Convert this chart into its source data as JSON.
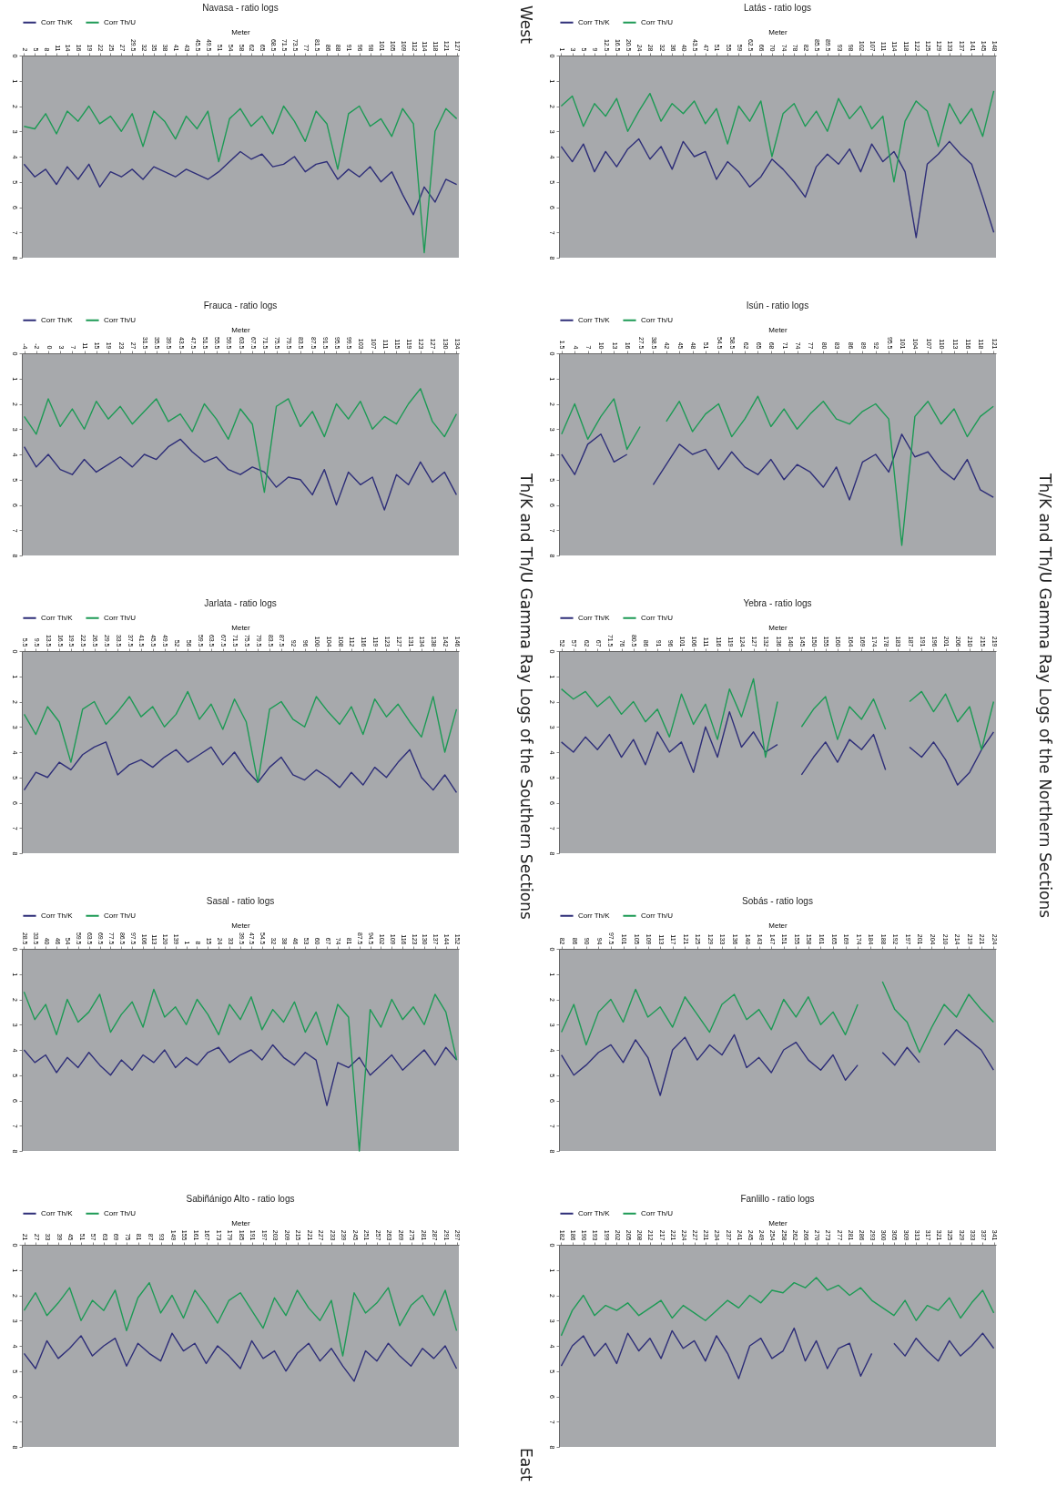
{
  "chart_data": [
    {
      "type": "line",
      "title": "Navasa - ratio logs",
      "xlabel": "Meter",
      "legend": "top",
      "grid": false,
      "ylim": [
        8,
        0
      ],
      "yticks": [
        0,
        1,
        2,
        3,
        4,
        5,
        6,
        7,
        8
      ],
      "categories": [
        "2",
        "5",
        "8",
        "11",
        "14",
        "16",
        "19",
        "22",
        "25",
        "27",
        "29.5",
        "32",
        "35",
        "38",
        "41",
        "43",
        "45.5",
        "49.5",
        "51",
        "54",
        "58",
        "62",
        "65",
        "68.5",
        "71.5",
        "73.5",
        "77",
        "81.5",
        "86",
        "88",
        "91",
        "96",
        "98",
        "101",
        "105",
        "109",
        "112",
        "114",
        "118",
        "121",
        "127"
      ],
      "series": [
        {
          "name": "Corr Th/K",
          "color": "#2e2e78",
          "values": [
            4.3,
            4.8,
            4.5,
            5.1,
            4.4,
            4.9,
            4.3,
            5.2,
            4.6,
            4.8,
            4.5,
            4.9,
            4.4,
            4.6,
            4.8,
            4.5,
            4.7,
            4.9,
            4.6,
            4.2,
            3.8,
            4.1,
            3.9,
            4.4,
            4.3,
            4.0,
            4.6,
            4.3,
            4.2,
            4.9,
            4.5,
            4.8,
            4.4,
            5.0,
            4.6,
            5.5,
            6.3,
            5.2,
            5.8,
            4.9,
            5.1
          ]
        },
        {
          "name": "Corr Th/U",
          "color": "#1d9a55",
          "values": [
            2.8,
            2.9,
            2.3,
            3.1,
            2.2,
            2.6,
            2.0,
            2.7,
            2.4,
            3.0,
            2.3,
            3.6,
            2.2,
            2.6,
            3.3,
            2.4,
            2.9,
            2.2,
            4.2,
            2.5,
            2.1,
            2.8,
            2.4,
            3.1,
            2.0,
            2.6,
            3.4,
            2.2,
            2.7,
            4.5,
            2.3,
            2.0,
            2.8,
            2.5,
            3.2,
            2.1,
            2.7,
            7.8,
            3.0,
            2.1,
            2.5
          ]
        }
      ]
    },
    {
      "type": "line",
      "title": "Latás - ratio logs",
      "xlabel": "Meter",
      "legend": "top",
      "grid": false,
      "ylim": [
        8,
        0
      ],
      "yticks": [
        0,
        1,
        2,
        3,
        4,
        5,
        6,
        7,
        8
      ],
      "categories": [
        "1",
        "3",
        "5",
        "9",
        "12.5",
        "16.5",
        "20.5",
        "24",
        "28",
        "32",
        "36",
        "40",
        "43.5",
        "47",
        "51",
        "55",
        "59",
        "62.5",
        "66",
        "70",
        "74",
        "78",
        "82",
        "85.5",
        "89.5",
        "93",
        "98",
        "102",
        "107",
        "111",
        "114",
        "118",
        "122",
        "125",
        "129",
        "133",
        "137",
        "141",
        "145",
        "148"
      ],
      "series": [
        {
          "name": "Corr Th/K",
          "color": "#2e2e78",
          "values": [
            3.6,
            4.2,
            3.5,
            4.6,
            3.8,
            4.4,
            3.7,
            3.3,
            4.1,
            3.6,
            4.5,
            3.4,
            4.0,
            3.8,
            4.9,
            4.2,
            4.6,
            5.2,
            4.8,
            4.1,
            4.5,
            5.0,
            5.6,
            4.4,
            3.9,
            4.3,
            3.7,
            4.6,
            3.5,
            4.2,
            3.8,
            4.6,
            7.2,
            4.3,
            3.9,
            3.4,
            3.9,
            4.3,
            5.6,
            7.0
          ]
        },
        {
          "name": "Corr Th/U",
          "color": "#1d9a55",
          "values": [
            2.0,
            1.6,
            2.8,
            1.9,
            2.4,
            1.7,
            3.0,
            2.2,
            1.5,
            2.6,
            1.9,
            2.3,
            1.8,
            2.7,
            2.1,
            3.5,
            2.0,
            2.6,
            1.8,
            4.0,
            2.3,
            1.9,
            2.8,
            2.2,
            3.0,
            1.7,
            2.5,
            2.0,
            2.9,
            2.4,
            5.0,
            2.6,
            1.8,
            2.2,
            3.6,
            1.9,
            2.7,
            2.1,
            3.2,
            1.4
          ]
        }
      ]
    },
    {
      "type": "line",
      "title": "Frauca - ratio logs",
      "xlabel": "Meter",
      "legend": "top",
      "grid": false,
      "ylim": [
        8,
        0
      ],
      "yticks": [
        0,
        1,
        2,
        3,
        4,
        5,
        6,
        7,
        8
      ],
      "categories": [
        "-4",
        "-2",
        "0",
        "3",
        "7",
        "11",
        "15",
        "19",
        "23",
        "27",
        "31.5",
        "35.5",
        "39.5",
        "43.5",
        "47.5",
        "51.5",
        "55.5",
        "59.5",
        "63.5",
        "67.5",
        "71.5",
        "75.5",
        "79.5",
        "83.5",
        "87.5",
        "91.5",
        "95.5",
        "99.5",
        "103",
        "107",
        "111",
        "115",
        "119",
        "123",
        "127",
        "130",
        "134"
      ],
      "series": [
        {
          "name": "Corr Th/K",
          "color": "#2e2e78",
          "values": [
            3.7,
            4.5,
            4.0,
            4.6,
            4.8,
            4.2,
            4.7,
            4.4,
            4.1,
            4.5,
            4.0,
            4.2,
            3.7,
            3.4,
            3.9,
            4.3,
            4.1,
            4.6,
            4.8,
            4.5,
            4.7,
            5.3,
            4.9,
            5.0,
            5.6,
            4.6,
            6.0,
            4.7,
            5.2,
            4.9,
            6.2,
            4.8,
            5.2,
            4.3,
            5.1,
            4.7,
            5.6
          ]
        },
        {
          "name": "Corr Th/U",
          "color": "#1d9a55",
          "values": [
            2.5,
            3.2,
            1.8,
            2.9,
            2.2,
            3.0,
            1.9,
            2.6,
            2.1,
            2.8,
            2.3,
            1.8,
            2.7,
            2.4,
            3.1,
            2.0,
            2.6,
            3.4,
            2.2,
            2.8,
            5.5,
            2.1,
            1.8,
            2.9,
            2.3,
            3.3,
            2.0,
            2.6,
            1.9,
            3.0,
            2.5,
            2.8,
            2.0,
            1.4,
            2.7,
            3.3,
            2.4
          ]
        }
      ]
    },
    {
      "type": "line",
      "title": "Isún - ratio logs",
      "xlabel": "Meter",
      "legend": "top",
      "grid": false,
      "ylim": [
        8,
        0
      ],
      "yticks": [
        0,
        1,
        2,
        3,
        4,
        5,
        6,
        7,
        8
      ],
      "categories": [
        "1.5",
        "4",
        "7",
        "10",
        "13",
        "16",
        "27.5",
        "38.5",
        "42",
        "45",
        "48",
        "51",
        "54.5",
        "58.5",
        "62",
        "65",
        "68",
        "71",
        "74",
        "77",
        "80",
        "83",
        "86",
        "89",
        "92",
        "95.5",
        "101",
        "104",
        "107",
        "110",
        "113",
        "116",
        "118",
        "121"
      ],
      "series": [
        {
          "name": "Corr Th/K",
          "color": "#2e2e78",
          "values": [
            4.0,
            4.8,
            3.6,
            3.2,
            4.3,
            4.0,
            null,
            5.2,
            4.4,
            3.6,
            4.0,
            3.8,
            4.6,
            3.9,
            4.5,
            4.8,
            4.2,
            5.0,
            4.4,
            4.7,
            5.3,
            4.5,
            5.8,
            4.3,
            4.0,
            4.7,
            3.2,
            4.1,
            3.9,
            4.6,
            5.0,
            4.2,
            5.4,
            5.7
          ]
        },
        {
          "name": "Corr Th/U",
          "color": "#1d9a55",
          "values": [
            3.2,
            2.0,
            3.4,
            2.5,
            1.8,
            3.8,
            2.9,
            null,
            2.7,
            1.9,
            3.1,
            2.4,
            2.0,
            3.3,
            2.6,
            1.7,
            2.9,
            2.2,
            3.0,
            2.4,
            1.9,
            2.6,
            2.8,
            2.3,
            2.0,
            2.6,
            7.6,
            2.5,
            1.9,
            2.8,
            2.2,
            3.3,
            2.5,
            2.1
          ]
        }
      ]
    },
    {
      "type": "line",
      "title": "Jarlata - ratio logs",
      "xlabel": "Meter",
      "legend": "top",
      "grid": false,
      "ylim": [
        8,
        0
      ],
      "yticks": [
        0,
        1,
        2,
        3,
        4,
        5,
        6,
        7,
        8
      ],
      "categories": [
        "5.5",
        "9.5",
        "13.5",
        "16.5",
        "19.5",
        "22.5",
        "26.5",
        "29.5",
        "33.5",
        "37.5",
        "41.5",
        "45.5",
        "49.5",
        "52",
        "56",
        "59.5",
        "63.5",
        "67.5",
        "71.5",
        "75.5",
        "79.5",
        "83.5",
        "87.5",
        "92",
        "96",
        "100",
        "104",
        "108",
        "112",
        "116",
        "119",
        "123",
        "127",
        "131",
        "134",
        "138",
        "142",
        "146"
      ],
      "series": [
        {
          "name": "Corr Th/K",
          "color": "#2e2e78",
          "values": [
            5.5,
            4.8,
            5.0,
            4.4,
            4.7,
            4.1,
            3.8,
            3.6,
            4.9,
            4.5,
            4.3,
            4.6,
            4.2,
            3.9,
            4.4,
            4.1,
            3.8,
            4.5,
            4.0,
            4.7,
            5.2,
            4.6,
            4.2,
            4.9,
            5.1,
            4.7,
            5.0,
            5.4,
            4.8,
            5.3,
            4.6,
            5.0,
            4.4,
            3.9,
            5.0,
            5.5,
            4.9,
            5.6
          ]
        },
        {
          "name": "Corr Th/U",
          "color": "#1d9a55",
          "values": [
            2.5,
            3.3,
            2.2,
            2.8,
            4.4,
            2.3,
            2.0,
            2.9,
            2.4,
            1.8,
            2.6,
            2.2,
            3.0,
            2.5,
            1.6,
            2.7,
            2.1,
            3.1,
            1.9,
            2.8,
            5.2,
            2.3,
            2.0,
            2.7,
            3.0,
            1.8,
            2.4,
            2.9,
            2.2,
            3.3,
            1.9,
            2.6,
            2.1,
            2.8,
            3.4,
            1.8,
            4.0,
            2.3
          ]
        }
      ]
    },
    {
      "type": "line",
      "title": "Yebra - ratio logs",
      "xlabel": "Meter",
      "legend": "top",
      "grid": false,
      "ylim": [
        8,
        0
      ],
      "yticks": [
        0,
        1,
        2,
        3,
        4,
        5,
        6,
        7,
        8
      ],
      "categories": [
        "52",
        "57",
        "62",
        "67",
        "71.5",
        "76",
        "80.5",
        "86",
        "91",
        "96",
        "101",
        "106",
        "111",
        "116",
        "119",
        "124",
        "127",
        "132",
        "136",
        "140",
        "145",
        "150",
        "155",
        "160",
        "164",
        "169",
        "174",
        "178",
        "183",
        "187",
        "191",
        "196",
        "201",
        "206",
        "210",
        "215",
        "219"
      ],
      "series": [
        {
          "name": "Corr Th/K",
          "color": "#2e2e78",
          "values": [
            3.6,
            4.0,
            3.4,
            3.9,
            3.3,
            4.2,
            3.5,
            4.5,
            3.2,
            4.0,
            3.6,
            4.8,
            3.0,
            4.2,
            2.4,
            3.8,
            3.2,
            4.0,
            3.7,
            null,
            4.9,
            4.2,
            3.6,
            4.4,
            3.5,
            3.9,
            3.3,
            4.7,
            null,
            3.8,
            4.2,
            3.6,
            4.3,
            5.3,
            4.8,
            3.9,
            3.2
          ]
        },
        {
          "name": "Corr Th/U",
          "color": "#1d9a55",
          "values": [
            1.5,
            1.9,
            1.6,
            2.2,
            1.8,
            2.5,
            2.0,
            2.8,
            2.3,
            3.4,
            1.7,
            2.9,
            2.1,
            3.5,
            1.5,
            2.6,
            1.1,
            4.2,
            2.0,
            null,
            3.0,
            2.3,
            1.8,
            3.5,
            2.2,
            2.7,
            1.9,
            3.1,
            null,
            2.0,
            1.6,
            2.4,
            1.7,
            2.8,
            2.2,
            3.9,
            2.0
          ]
        }
      ]
    },
    {
      "type": "line",
      "title": "Sasal - ratio logs",
      "xlabel": "Meter",
      "legend": "top",
      "grid": false,
      "ylim": [
        8,
        0
      ],
      "yticks": [
        0,
        1,
        2,
        3,
        4,
        5,
        6,
        7,
        8
      ],
      "categories": [
        "28.5",
        "33.5",
        "40",
        "46",
        "54",
        "59.5",
        "63.5",
        "69.5",
        "77.5",
        "86.5",
        "97.5",
        "106",
        "113",
        "120",
        "139",
        "1",
        "8",
        "15",
        "24",
        "33",
        "39.5",
        "47.5",
        "54.5",
        "32",
        "38",
        "46",
        "53",
        "60",
        "67",
        "74",
        "81",
        "87.5",
        "94.5",
        "102",
        "109",
        "116",
        "123",
        "130",
        "137",
        "144",
        "152"
      ],
      "series": [
        {
          "name": "Corr Th/K",
          "color": "#2e2e78",
          "values": [
            4.0,
            4.5,
            4.2,
            4.9,
            4.3,
            4.7,
            4.1,
            4.6,
            5.0,
            4.4,
            4.8,
            4.2,
            4.5,
            4.0,
            4.7,
            4.3,
            4.6,
            4.1,
            3.9,
            4.5,
            4.2,
            4.0,
            4.4,
            3.8,
            4.3,
            4.6,
            4.1,
            4.4,
            6.2,
            4.5,
            4.7,
            4.3,
            5.0,
            4.6,
            4.2,
            4.8,
            4.4,
            4.0,
            4.6,
            3.9,
            4.4
          ]
        },
        {
          "name": "Corr Th/U",
          "color": "#1d9a55",
          "values": [
            1.7,
            2.8,
            2.2,
            3.4,
            2.0,
            2.9,
            2.5,
            1.8,
            3.3,
            2.6,
            2.1,
            3.1,
            1.6,
            2.7,
            2.3,
            3.0,
            2.0,
            2.6,
            3.4,
            2.2,
            2.8,
            1.9,
            3.2,
            2.4,
            2.9,
            2.1,
            3.3,
            2.5,
            3.8,
            2.2,
            2.7,
            8.0,
            2.4,
            3.1,
            2.0,
            2.8,
            2.3,
            3.0,
            1.8,
            2.5,
            4.4
          ]
        }
      ]
    },
    {
      "type": "line",
      "title": "Sobás - ratio logs",
      "xlabel": "Meter",
      "legend": "top",
      "grid": false,
      "ylim": [
        8,
        0
      ],
      "yticks": [
        0,
        1,
        2,
        3,
        4,
        5,
        6,
        7,
        8
      ],
      "categories": [
        "82",
        "86",
        "90",
        "94",
        "97.5",
        "101",
        "105",
        "109",
        "113",
        "117",
        "121",
        "125",
        "129",
        "133",
        "136",
        "140",
        "143",
        "147",
        "151",
        "155",
        "158",
        "161",
        "165",
        "169",
        "174",
        "184",
        "188",
        "192",
        "197",
        "201",
        "204",
        "210",
        "214",
        "219",
        "221",
        "224"
      ],
      "series": [
        {
          "name": "Corr Th/K",
          "color": "#2e2e78",
          "values": [
            4.2,
            5.0,
            4.6,
            4.1,
            3.8,
            4.5,
            3.6,
            4.3,
            5.8,
            4.0,
            3.5,
            4.4,
            3.8,
            4.2,
            3.4,
            4.7,
            4.3,
            4.9,
            4.0,
            3.7,
            4.4,
            4.8,
            4.2,
            5.2,
            4.6,
            null,
            4.1,
            4.6,
            3.9,
            4.5,
            null,
            3.8,
            3.2,
            3.6,
            4.0,
            4.8
          ]
        },
        {
          "name": "Corr Th/U",
          "color": "#1d9a55",
          "values": [
            3.3,
            2.2,
            3.8,
            2.5,
            2.0,
            2.9,
            1.6,
            2.7,
            2.3,
            3.1,
            1.9,
            2.6,
            3.3,
            2.2,
            1.8,
            2.8,
            2.4,
            3.2,
            2.0,
            2.7,
            1.9,
            3.0,
            2.5,
            3.4,
            2.2,
            null,
            1.3,
            2.4,
            2.9,
            4.1,
            3.1,
            2.2,
            2.7,
            1.8,
            2.4,
            2.9
          ]
        }
      ]
    },
    {
      "type": "line",
      "title": "Sabiñánigo Alto - ratio logs",
      "xlabel": "Meter",
      "legend": "top",
      "grid": false,
      "ylim": [
        8,
        0
      ],
      "yticks": [
        0,
        1,
        2,
        3,
        4,
        5,
        6,
        7,
        8
      ],
      "categories": [
        "21",
        "27",
        "33",
        "39",
        "45",
        "51",
        "57",
        "63",
        "69",
        "75",
        "81",
        "87",
        "93",
        "149",
        "155",
        "161",
        "167",
        "173",
        "179",
        "185",
        "191",
        "197",
        "203",
        "209",
        "215",
        "221",
        "227",
        "233",
        "239",
        "245",
        "251",
        "257",
        "263",
        "269",
        "275",
        "281",
        "287",
        "291",
        "297"
      ],
      "series": [
        {
          "name": "Corr Th/K",
          "color": "#2e2e78",
          "values": [
            4.3,
            4.9,
            3.8,
            4.5,
            4.1,
            3.6,
            4.4,
            4.0,
            3.7,
            4.8,
            3.9,
            4.3,
            4.6,
            3.5,
            4.2,
            3.9,
            4.7,
            4.0,
            4.4,
            4.9,
            3.8,
            4.5,
            4.2,
            5.0,
            4.3,
            3.9,
            4.6,
            4.1,
            4.8,
            5.4,
            4.2,
            4.6,
            3.9,
            4.4,
            4.8,
            4.1,
            4.5,
            4.0,
            4.9
          ]
        },
        {
          "name": "Corr Th/U",
          "color": "#1d9a55",
          "values": [
            2.6,
            1.9,
            2.8,
            2.3,
            1.7,
            3.0,
            2.2,
            2.6,
            1.8,
            3.4,
            2.1,
            1.5,
            2.7,
            2.0,
            2.9,
            1.8,
            2.4,
            3.1,
            2.2,
            1.9,
            2.6,
            3.3,
            2.1,
            2.8,
            1.8,
            2.5,
            3.0,
            2.2,
            4.4,
            1.9,
            2.7,
            2.3,
            1.7,
            3.2,
            2.4,
            2.0,
            2.8,
            1.8,
            3.4
          ]
        }
      ]
    },
    {
      "type": "line",
      "title": "Fanlillo - ratio logs",
      "xlabel": "Meter",
      "legend": "top",
      "grid": false,
      "ylim": [
        8,
        0
      ],
      "yticks": [
        0,
        1,
        2,
        3,
        4,
        5,
        6,
        7,
        8
      ],
      "categories": [
        "182",
        "186",
        "190",
        "193",
        "199",
        "202",
        "205",
        "208",
        "212",
        "217",
        "221",
        "224",
        "227",
        "231",
        "234",
        "237",
        "241",
        "245",
        "249",
        "254",
        "258",
        "262",
        "266",
        "270",
        "273",
        "277",
        "281",
        "286",
        "293",
        "300",
        "305",
        "309",
        "313",
        "317",
        "321",
        "325",
        "329",
        "333",
        "337",
        "341"
      ],
      "series": [
        {
          "name": "Corr Th/K",
          "color": "#2e2e78",
          "values": [
            4.8,
            4.0,
            3.6,
            4.4,
            3.9,
            4.7,
            3.5,
            4.2,
            3.7,
            4.5,
            3.4,
            4.1,
            3.8,
            4.6,
            3.6,
            4.3,
            5.3,
            4.0,
            3.7,
            4.5,
            4.2,
            3.3,
            4.6,
            3.8,
            4.9,
            4.1,
            3.9,
            5.2,
            4.3,
            null,
            3.9,
            4.4,
            3.7,
            4.2,
            4.6,
            3.8,
            4.4,
            4.0,
            3.5,
            4.1
          ]
        },
        {
          "name": "Corr Th/U",
          "color": "#1d9a55",
          "values": [
            3.6,
            2.6,
            2.0,
            2.8,
            2.4,
            2.6,
            2.3,
            2.8,
            2.5,
            2.2,
            2.9,
            2.4,
            2.7,
            3.0,
            2.6,
            2.2,
            2.5,
            2.0,
            2.3,
            1.8,
            1.9,
            1.5,
            1.7,
            1.3,
            1.8,
            1.6,
            2.0,
            1.7,
            2.2,
            2.5,
            2.8,
            2.2,
            3.0,
            2.4,
            2.6,
            2.1,
            2.9,
            2.3,
            1.8,
            2.7
          ]
        }
      ]
    },
    {
      "type": "other",
      "annotations": [
        "West",
        "Th/K and Th/U Gamma Ray Logs of the Southern Sections",
        "Th/K and Th/U Gamma Ray Logs of the Northern Sections",
        "East"
      ]
    }
  ]
}
